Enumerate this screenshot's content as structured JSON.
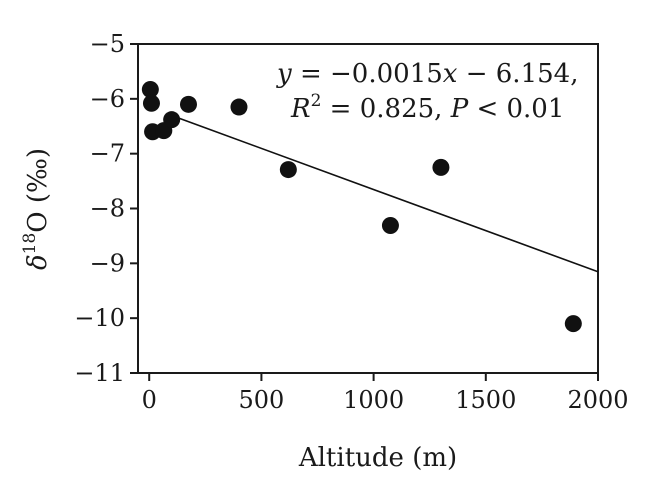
{
  "chart_data": {
    "type": "scatter",
    "xlabel": "Altitude (m)",
    "ylabel": {
      "prefix": "δ",
      "superscript": "18",
      "suffix": "O (‰)"
    },
    "xlim": [
      -50,
      2000
    ],
    "ylim": [
      -11,
      -5
    ],
    "xticks": [
      0,
      500,
      1000,
      1500,
      2000
    ],
    "yticks": [
      -5,
      -6,
      -7,
      -8,
      -9,
      -10,
      -11
    ],
    "xtick_labels": [
      "0",
      "500",
      "1000",
      "1500",
      "2000"
    ],
    "ytick_labels": [
      "−5",
      "−6",
      "−7",
      "−8",
      "−9",
      "−10",
      "−11"
    ],
    "points": [
      {
        "x": 5,
        "y": -5.83
      },
      {
        "x": 10,
        "y": -6.08
      },
      {
        "x": 15,
        "y": -6.6
      },
      {
        "x": 65,
        "y": -6.58
      },
      {
        "x": 100,
        "y": -6.38
      },
      {
        "x": 175,
        "y": -6.1
      },
      {
        "x": 400,
        "y": -6.15
      },
      {
        "x": 620,
        "y": -7.29
      },
      {
        "x": 1075,
        "y": -8.31
      },
      {
        "x": 1300,
        "y": -7.25
      },
      {
        "x": 1890,
        "y": -10.1
      }
    ],
    "fit": {
      "slope": -0.0015,
      "intercept": -6.154,
      "x_range": [
        100,
        2000
      ]
    },
    "annotation": {
      "line1": {
        "var": "y",
        "rest": " = −0.0015",
        "var2": "x",
        "tail": " − 6.154,"
      },
      "line2": {
        "var": "R",
        "sup": "2",
        "mid": " = 0.825, ",
        "var2": "P",
        "tail": " < 0.01"
      }
    },
    "colors": {
      "marker": "#111111",
      "line": "#111111",
      "axis": "#1a1a1a"
    },
    "grid": false
  }
}
